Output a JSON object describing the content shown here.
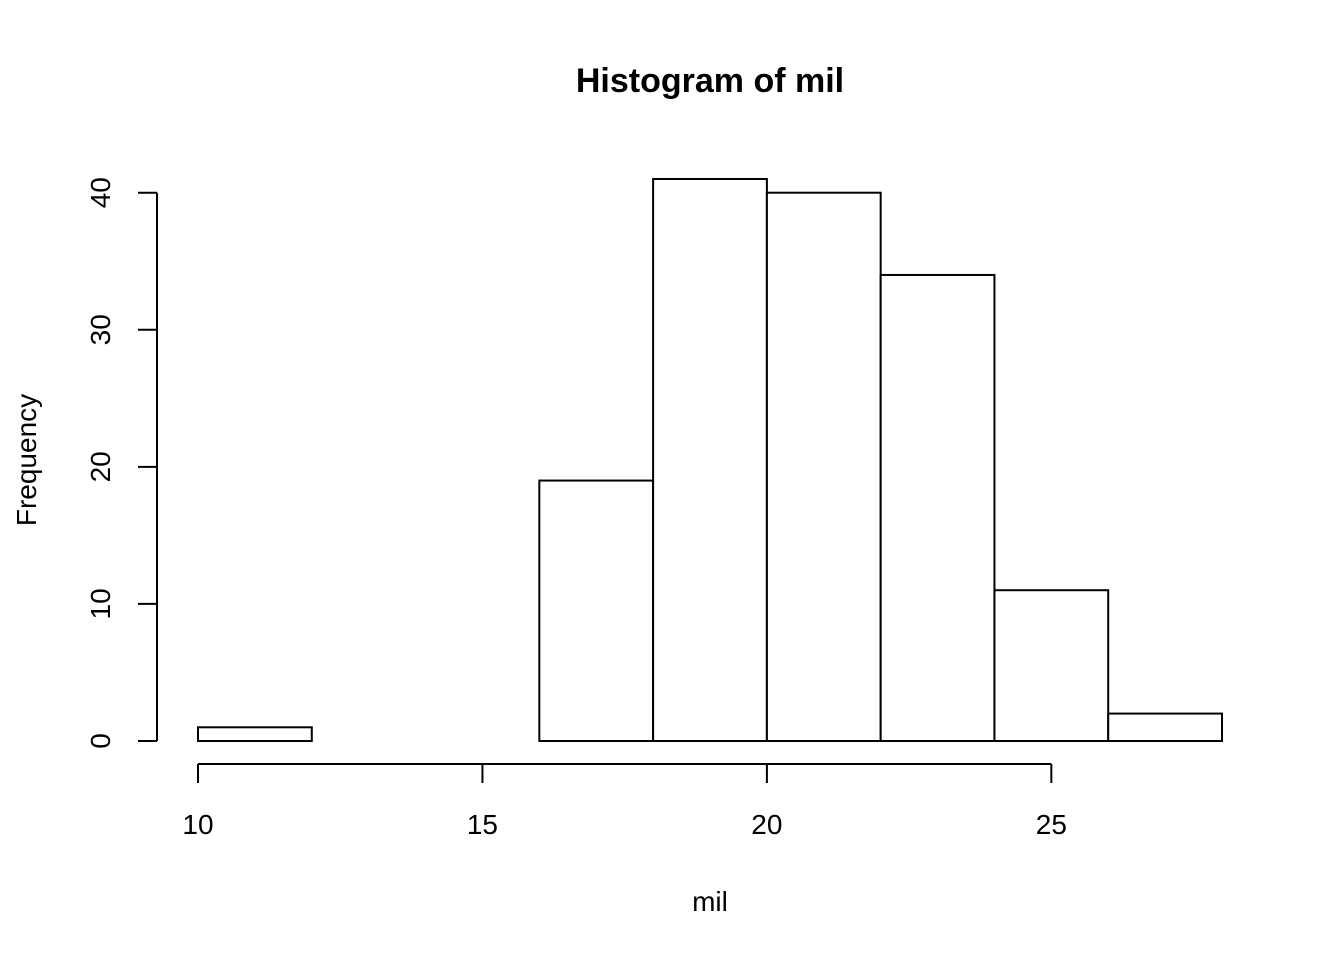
{
  "chart_data": {
    "type": "bar",
    "subtype": "histogram",
    "title": "Histogram of mil",
    "xlabel": "mil",
    "ylabel": "Frequency",
    "bins": [
      {
        "from": 10,
        "to": 12,
        "count": 1
      },
      {
        "from": 12,
        "to": 14,
        "count": 0
      },
      {
        "from": 14,
        "to": 16,
        "count": 0
      },
      {
        "from": 16,
        "to": 18,
        "count": 19
      },
      {
        "from": 18,
        "to": 20,
        "count": 41
      },
      {
        "from": 20,
        "to": 22,
        "count": 40
      },
      {
        "from": 22,
        "to": 24,
        "count": 34
      },
      {
        "from": 24,
        "to": 26,
        "count": 11
      },
      {
        "from": 26,
        "to": 28,
        "count": 2
      }
    ],
    "xticks": [
      10,
      15,
      20,
      25
    ],
    "yticks": [
      0,
      10,
      20,
      30,
      40
    ],
    "xlim": [
      10,
      28
    ],
    "ylim": [
      0,
      41
    ],
    "grid": false,
    "bar_fill": "#ffffff",
    "bar_stroke": "#000000"
  }
}
